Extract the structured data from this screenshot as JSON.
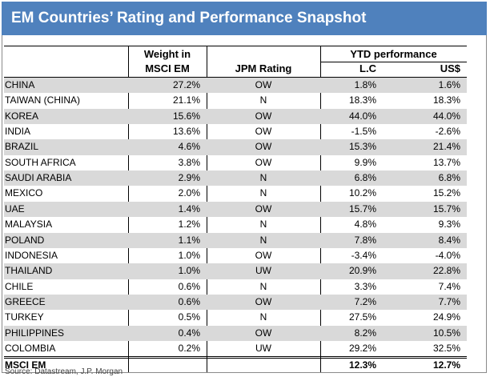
{
  "header": {
    "title": "EM Countries’ Rating and Performance Snapshot"
  },
  "table": {
    "columns": {
      "weight": [
        "Weight in",
        "MSCI EM"
      ],
      "rating": "JPM Rating",
      "ytd": "YTD performance",
      "lc": "L.C",
      "usd": "US$"
    },
    "rows": [
      [
        "CHINA",
        "27.2%",
        "OW",
        "1.8%",
        "1.6%"
      ],
      [
        "TAIWAN (CHINA)",
        "21.1%",
        "N",
        "18.3%",
        "18.3%"
      ],
      [
        "KOREA",
        "15.6%",
        "OW",
        "44.0%",
        "44.0%"
      ],
      [
        "INDIA",
        "13.6%",
        "OW",
        "-1.5%",
        "-2.6%"
      ],
      [
        "BRAZIL",
        "4.6%",
        "OW",
        "15.3%",
        "21.4%"
      ],
      [
        "SOUTH AFRICA",
        "3.8%",
        "OW",
        "9.9%",
        "13.7%"
      ],
      [
        "SAUDI ARABIA",
        "2.9%",
        "N",
        "6.8%",
        "6.8%"
      ],
      [
        "MEXICO",
        "2.0%",
        "N",
        "10.2%",
        "15.2%"
      ],
      [
        "UAE",
        "1.4%",
        "OW",
        "15.7%",
        "15.7%"
      ],
      [
        "MALAYSIA",
        "1.2%",
        "N",
        "4.8%",
        "9.3%"
      ],
      [
        "POLAND",
        "1.1%",
        "N",
        "7.8%",
        "8.4%"
      ],
      [
        "INDONESIA",
        "1.0%",
        "OW",
        "-3.4%",
        "-4.0%"
      ],
      [
        "THAILAND",
        "1.0%",
        "UW",
        "20.9%",
        "22.8%"
      ],
      [
        "CHILE",
        "0.6%",
        "N",
        "3.3%",
        "7.4%"
      ],
      [
        "GREECE",
        "0.6%",
        "OW",
        "7.2%",
        "7.7%"
      ],
      [
        "TURKEY",
        "0.5%",
        "N",
        "27.5%",
        "24.9%"
      ],
      [
        "PHILIPPINES",
        "0.4%",
        "OW",
        "8.2%",
        "10.5%"
      ],
      [
        "COLOMBIA",
        "0.2%",
        "UW",
        "29.2%",
        "32.5%"
      ]
    ],
    "total": [
      "MSCI EM",
      "12.3%",
      "12.7%"
    ]
  },
  "footer": {
    "source": "Source: Datastream, J.P. Morgan"
  }
}
